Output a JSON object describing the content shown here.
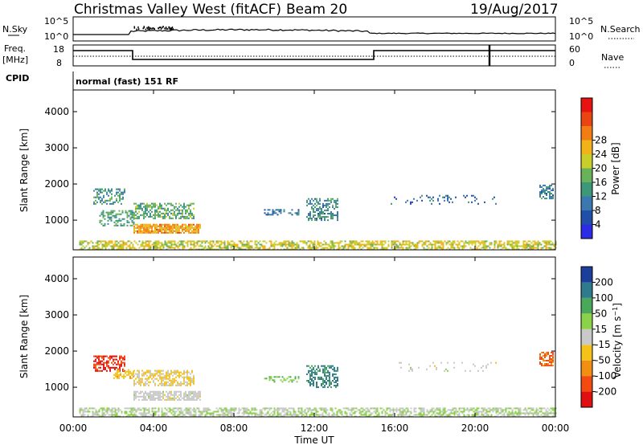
{
  "header": {
    "station": "Christmas Valley West (fitACF)",
    "beam": "Beam 20",
    "date": "19/Aug/2017"
  },
  "strips": {
    "nsky": {
      "label": "N.Sky",
      "tick_hi": "10^5",
      "tick_lo": "10^0"
    },
    "nsearch": {
      "label": "N.Search",
      "tick_hi": "10^5",
      "tick_lo": "10^0"
    },
    "freq": {
      "label_1": "Freq.",
      "label_2": "[MHz]",
      "tick_hi": "18",
      "tick_lo": "8"
    },
    "nave": {
      "label": "Nave",
      "tick_hi": "60",
      "tick_lo": "0"
    },
    "cpid": {
      "label": "CPID",
      "text": "normal (fast) 151 RF"
    }
  },
  "colors": {
    "power": [
      "#2c2ce6",
      "#1f4fa8",
      "#3b78b0",
      "#3c9878",
      "#68b25a",
      "#c9cf2a",
      "#f2b21a",
      "#f27d12",
      "#e84512",
      "#e81212"
    ],
    "velocity": [
      "#e01010",
      "#f24a10",
      "#f28f12",
      "#f5c21a",
      "#c9c9c9",
      "#8bd14a",
      "#4aa85a",
      "#2f7a8c",
      "#1c3f9c"
    ]
  },
  "chart_data": [
    {
      "type": "heatmap",
      "quantity": "power",
      "xlabel": "",
      "ylabel": "Slant Range [km]",
      "y_ticks": [
        1000,
        2000,
        3000,
        4000
      ],
      "ylim": [
        180,
        4600
      ],
      "xlim_hours": [
        0,
        24
      ],
      "colorbar": {
        "label": "Power [dB]",
        "ticks": [
          "4",
          "8",
          "12",
          "16",
          "20",
          "24",
          "28"
        ],
        "range": [
          0,
          32
        ]
      },
      "regions": [
        {
          "t0": 0.3,
          "t1": 24.0,
          "r0": 190,
          "r1": 450,
          "v": 18,
          "density": 0.6
        },
        {
          "t0": 1.0,
          "t1": 2.6,
          "r0": 1450,
          "r1": 1900,
          "v": 11,
          "density": 0.45
        },
        {
          "t0": 1.3,
          "t1": 3.0,
          "r0": 850,
          "r1": 1300,
          "v": 12,
          "density": 0.45
        },
        {
          "t0": 3.0,
          "t1": 6.3,
          "r0": 650,
          "r1": 900,
          "v": 22,
          "density": 0.85
        },
        {
          "t0": 3.0,
          "t1": 6.0,
          "r0": 1050,
          "r1": 1500,
          "v": 13,
          "density": 0.55
        },
        {
          "t0": 9.5,
          "t1": 11.2,
          "r0": 1150,
          "r1": 1300,
          "v": 8,
          "density": 0.4
        },
        {
          "t0": 11.6,
          "t1": 13.2,
          "r0": 1000,
          "r1": 1600,
          "v": 10,
          "density": 0.5
        },
        {
          "t0": 15.8,
          "t1": 21.0,
          "r0": 1450,
          "r1": 1700,
          "v": 7,
          "density": 0.12
        },
        {
          "t0": 23.2,
          "t1": 23.9,
          "r0": 1600,
          "r1": 2000,
          "v": 9,
          "density": 0.65
        }
      ]
    },
    {
      "type": "heatmap",
      "quantity": "velocity",
      "xlabel": "Time UT",
      "ylabel": "Slant Range [km]",
      "x_ticks": [
        "00:00",
        "04:00",
        "08:00",
        "12:00",
        "16:00",
        "20:00",
        "00:00"
      ],
      "y_ticks": [
        1000,
        2000,
        3000,
        4000
      ],
      "ylim": [
        180,
        4600
      ],
      "xlim_hours": [
        0,
        24
      ],
      "colorbar": {
        "label": "Velocity [m s^-1]",
        "ticks": [
          "-200",
          "-100",
          "-50",
          "-15",
          "15",
          "50",
          "100",
          "200"
        ],
        "range": [
          -250,
          250
        ]
      },
      "regions": [
        {
          "t0": 0.3,
          "t1": 24.0,
          "r0": 190,
          "r1": 450,
          "v": 25,
          "density": 0.6
        },
        {
          "t0": 1.0,
          "t1": 2.6,
          "r0": 1450,
          "r1": 1900,
          "v": -200,
          "density": 0.6
        },
        {
          "t0": 2.0,
          "t1": 3.0,
          "r0": 1250,
          "r1": 1500,
          "v": -60,
          "density": 0.5
        },
        {
          "t0": 3.0,
          "t1": 6.3,
          "r0": 650,
          "r1": 900,
          "v": 0,
          "density": 0.75
        },
        {
          "t0": 3.0,
          "t1": 6.0,
          "r0": 1050,
          "r1": 1500,
          "v": -35,
          "density": 0.55
        },
        {
          "t0": 9.5,
          "t1": 11.2,
          "r0": 1150,
          "r1": 1300,
          "v": 80,
          "density": 0.4
        },
        {
          "t0": 11.6,
          "t1": 13.2,
          "r0": 1000,
          "r1": 1600,
          "v": 150,
          "density": 0.5
        },
        {
          "t0": 15.8,
          "t1": 21.0,
          "r0": 1450,
          "r1": 1700,
          "v": 0,
          "density": 0.1
        },
        {
          "t0": 23.2,
          "t1": 23.9,
          "r0": 1600,
          "r1": 2000,
          "v": -150,
          "density": 0.65
        }
      ]
    }
  ]
}
